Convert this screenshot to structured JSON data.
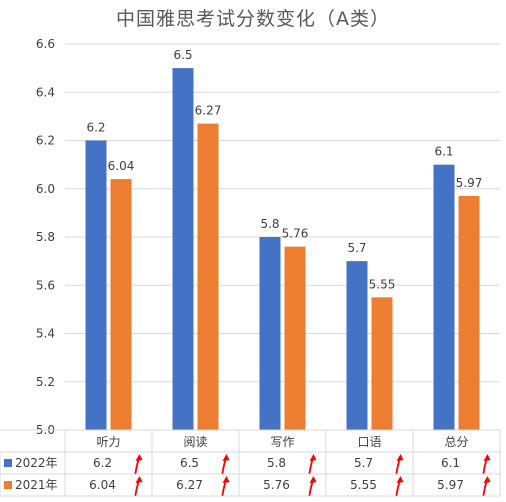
{
  "chart_data": {
    "type": "bar",
    "title": "中国雅思考试分数变化（A类）",
    "categories": [
      "听力",
      "阅读",
      "写作",
      "口语",
      "总分"
    ],
    "series": [
      {
        "name": "2022年",
        "color": "#4472C4",
        "values": [
          6.2,
          6.5,
          5.8,
          5.7,
          6.1
        ]
      },
      {
        "name": "2021年",
        "color": "#ED7D31",
        "values": [
          6.04,
          6.27,
          5.76,
          5.55,
          5.97
        ]
      }
    ],
    "ylim": [
      5.0,
      6.6
    ],
    "yticks": [
      "5.0",
      "5.2",
      "5.4",
      "5.6",
      "5.8",
      "6.0",
      "6.2",
      "6.4",
      "6.6"
    ],
    "data_labels": {
      "2022年": [
        "6.2",
        "6.5",
        "5.8",
        "5.7",
        "6.1"
      ],
      "2021年": [
        "6.04",
        "6.27",
        "5.76",
        "5.55",
        "5.97"
      ]
    },
    "grid": true,
    "legend": "data-table-below",
    "annotation": {
      "type": "red-up-arrow",
      "color": "#FF0000"
    }
  }
}
